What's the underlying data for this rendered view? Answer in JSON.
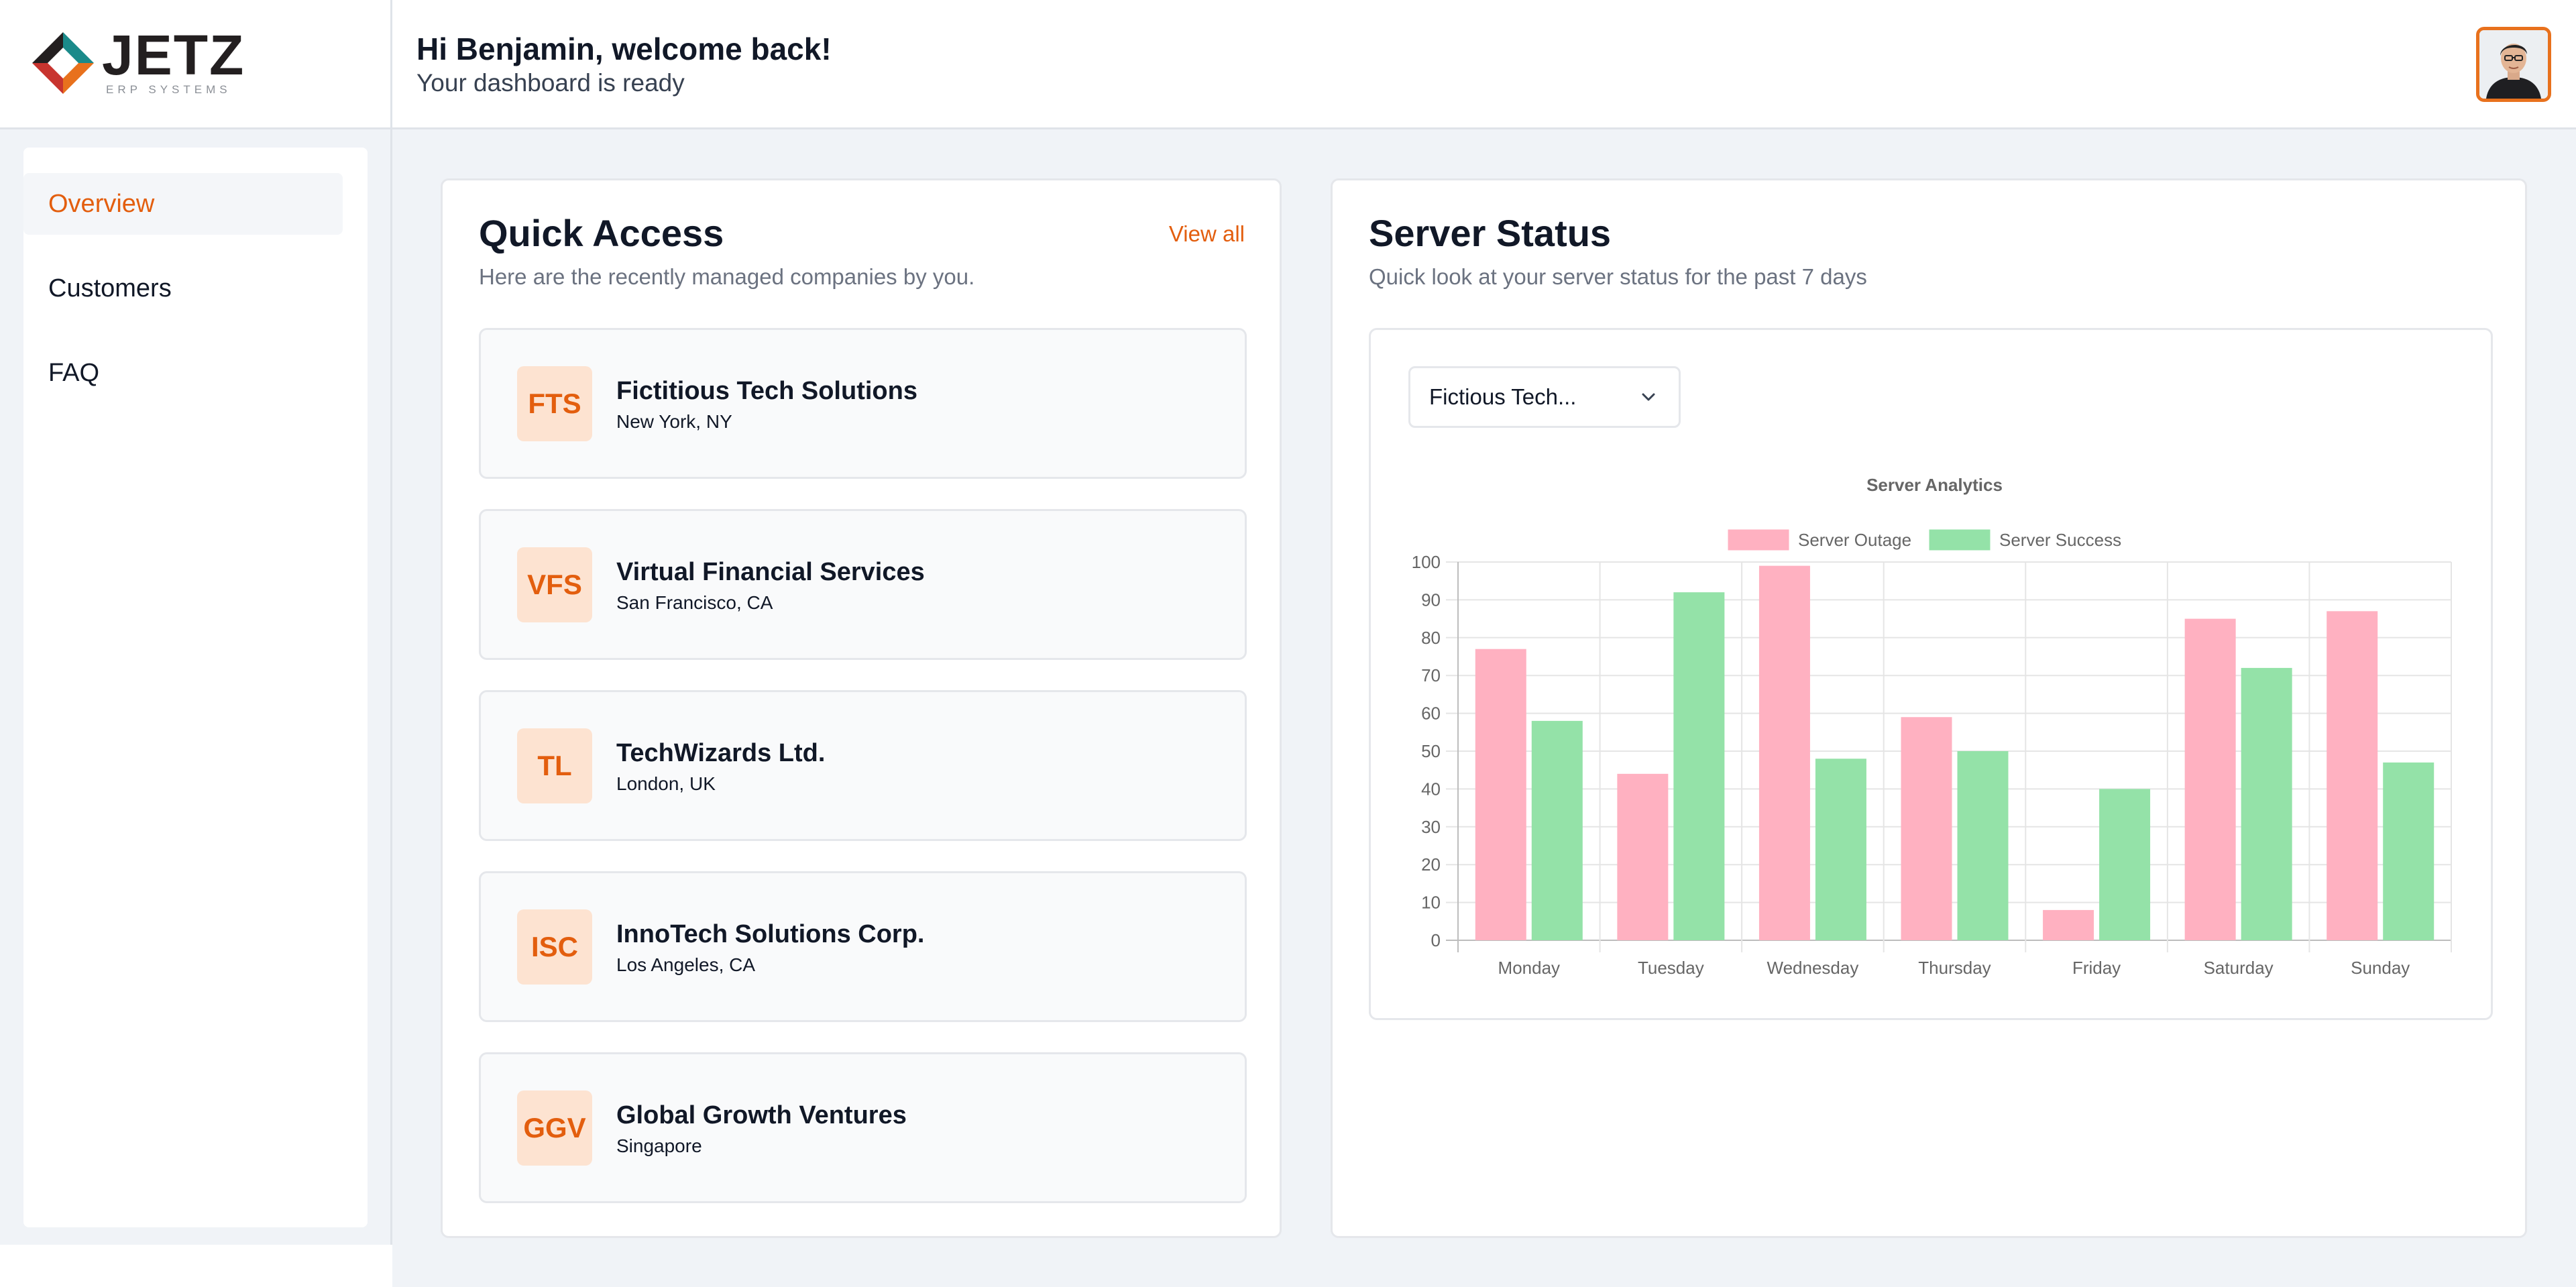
{
  "brand": {
    "name": "JETZ",
    "tagline": "ERP SYSTEMS",
    "colors": {
      "teal": "#1a8a8a",
      "orange": "#e8711d",
      "dark": "#231f20",
      "red": "#c8342f"
    }
  },
  "header": {
    "greeting": "Hi Benjamin, welcome back!",
    "subtitle": "Your dashboard is ready",
    "avatar_icon": "user-avatar"
  },
  "sidebar": {
    "items": [
      {
        "label": "Overview",
        "active": true
      },
      {
        "label": "Customers",
        "active": false
      },
      {
        "label": "FAQ",
        "active": false
      }
    ]
  },
  "quick_access": {
    "title": "Quick Access",
    "subtitle": "Here are the recently managed companies by you.",
    "view_all": "View all",
    "companies": [
      {
        "initials": "FTS",
        "name": "Fictitious Tech Solutions",
        "location": "New York, NY"
      },
      {
        "initials": "VFS",
        "name": "Virtual Financial Services",
        "location": "San Francisco, CA"
      },
      {
        "initials": "TL",
        "name": "TechWizards Ltd.",
        "location": "London, UK"
      },
      {
        "initials": "ISC",
        "name": "InnoTech Solutions Corp.",
        "location": "Los Angeles, CA"
      },
      {
        "initials": "GGV",
        "name": "Global Growth Ventures",
        "location": "Singapore"
      }
    ]
  },
  "server_status": {
    "title": "Server Status",
    "subtitle": "Quick look at your server status for the past 7 days",
    "select_value": "Fictious Tech...",
    "select_icon": "chevron-down-icon"
  },
  "chart_data": {
    "type": "bar",
    "title": "Server Analytics",
    "categories": [
      "Monday",
      "Tuesday",
      "Wednesday",
      "Thursday",
      "Friday",
      "Saturday",
      "Sunday"
    ],
    "series": [
      {
        "name": "Server Outage",
        "values": [
          77,
          44,
          99,
          59,
          8,
          85,
          87
        ],
        "color": "#ffb1c1"
      },
      {
        "name": "Server Success",
        "values": [
          58,
          92,
          48,
          50,
          40,
          72,
          47
        ],
        "color": "#94e2a8"
      }
    ],
    "ylim": [
      0,
      100
    ],
    "yticks": [
      "0",
      "10",
      "20",
      "30",
      "40",
      "50",
      "60",
      "70",
      "80",
      "90",
      "100"
    ],
    "grid": true,
    "legend": "top"
  }
}
